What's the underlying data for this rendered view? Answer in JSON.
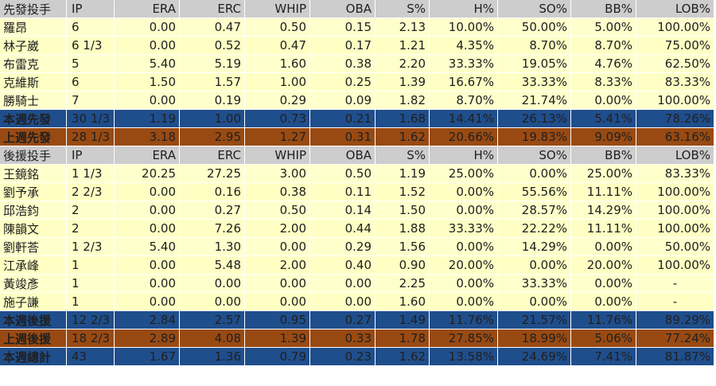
{
  "columns": [
    "IP",
    "ERA",
    "ERC",
    "WHIP",
    "OBA",
    "S%",
    "H%",
    "SO%",
    "BB%",
    "LOB%"
  ],
  "sections": [
    {
      "header": "先發投手",
      "rows": [
        {
          "name": "羅昂",
          "IP": "6",
          "ERA": "0.00",
          "ERC": "0.47",
          "WHIP": "0.50",
          "OBA": "0.15",
          "S%": "2.13",
          "H%": "10.00%",
          "SO%": "50.00%",
          "BB%": "5.00%",
          "LOB%": "100.00%"
        },
        {
          "name": "林子崴",
          "IP": "6 1/3",
          "ERA": "0.00",
          "ERC": "0.52",
          "WHIP": "0.47",
          "OBA": "0.17",
          "S%": "1.21",
          "H%": "4.35%",
          "SO%": "8.70%",
          "BB%": "8.70%",
          "LOB%": "75.00%"
        },
        {
          "name": "布雷克",
          "IP": "5",
          "ERA": "5.40",
          "ERC": "5.19",
          "WHIP": "1.60",
          "OBA": "0.38",
          "S%": "2.20",
          "H%": "33.33%",
          "SO%": "19.05%",
          "BB%": "4.76%",
          "LOB%": "62.50%"
        },
        {
          "name": "克維斯",
          "IP": "6",
          "ERA": "1.50",
          "ERC": "1.57",
          "WHIP": "1.00",
          "OBA": "0.25",
          "S%": "1.39",
          "H%": "16.67%",
          "SO%": "33.33%",
          "BB%": "8.33%",
          "LOB%": "83.33%"
        },
        {
          "name": "勝騎士",
          "IP": "7",
          "ERA": "0.00",
          "ERC": "0.19",
          "WHIP": "0.29",
          "OBA": "0.09",
          "S%": "1.82",
          "H%": "8.70%",
          "SO%": "21.74%",
          "BB%": "0.00%",
          "LOB%": "100.00%"
        }
      ],
      "summaries": [
        {
          "style": "blue",
          "name": "本週先發",
          "IP": "30 1/3",
          "ERA": "1.19",
          "ERC": "1.00",
          "WHIP": "0.73",
          "OBA": "0.21",
          "S%": "1.68",
          "H%": "14.41%",
          "SO%": "26.13%",
          "BB%": "5.41%",
          "LOB%": "78.26%"
        },
        {
          "style": "brown",
          "name": "上週先發",
          "IP": "28 1/3",
          "ERA": "3.18",
          "ERC": "2.95",
          "WHIP": "1.27",
          "OBA": "0.31",
          "S%": "1.62",
          "H%": "20.66%",
          "SO%": "19.83%",
          "BB%": "9.09%",
          "LOB%": "63.16%"
        }
      ]
    },
    {
      "header": "後援投手",
      "rows": [
        {
          "name": "王鏡銘",
          "IP": "1 1/3",
          "ERA": "20.25",
          "ERC": "27.25",
          "WHIP": "3.00",
          "OBA": "0.50",
          "S%": "1.19",
          "H%": "25.00%",
          "SO%": "0.00%",
          "BB%": "25.00%",
          "LOB%": "83.33%"
        },
        {
          "name": "劉予承",
          "IP": "2 2/3",
          "ERA": "0.00",
          "ERC": "0.16",
          "WHIP": "0.38",
          "OBA": "0.11",
          "S%": "1.52",
          "H%": "0.00%",
          "SO%": "55.56%",
          "BB%": "11.11%",
          "LOB%": "100.00%"
        },
        {
          "name": "邱浩鈞",
          "IP": "2",
          "ERA": "0.00",
          "ERC": "0.27",
          "WHIP": "0.50",
          "OBA": "0.14",
          "S%": "1.50",
          "H%": "0.00%",
          "SO%": "28.57%",
          "BB%": "14.29%",
          "LOB%": "100.00%"
        },
        {
          "name": "陳韻文",
          "IP": "2",
          "ERA": "0.00",
          "ERC": "7.26",
          "WHIP": "2.00",
          "OBA": "0.44",
          "S%": "1.88",
          "H%": "33.33%",
          "SO%": "22.22%",
          "BB%": "11.11%",
          "LOB%": "100.00%"
        },
        {
          "name": "劉軒荅",
          "IP": "1 2/3",
          "ERA": "5.40",
          "ERC": "1.30",
          "WHIP": "0.00",
          "OBA": "0.29",
          "S%": "1.56",
          "H%": "0.00%",
          "SO%": "14.29%",
          "BB%": "0.00%",
          "LOB%": "50.00%"
        },
        {
          "name": "江承峰",
          "IP": "1",
          "ERA": "0.00",
          "ERC": "5.48",
          "WHIP": "2.00",
          "OBA": "0.40",
          "S%": "0.90",
          "H%": "20.00%",
          "SO%": "0.00%",
          "BB%": "20.00%",
          "LOB%": "100.00%"
        },
        {
          "name": "黃竣彥",
          "IP": "1",
          "ERA": "0.00",
          "ERC": "0.00",
          "WHIP": "0.00",
          "OBA": "0.00",
          "S%": "2.25",
          "H%": "0.00%",
          "SO%": "33.33%",
          "BB%": "0.00%",
          "LOB%": "-"
        },
        {
          "name": "施子謙",
          "IP": "1",
          "ERA": "0.00",
          "ERC": "0.00",
          "WHIP": "0.00",
          "OBA": "0.00",
          "S%": "1.60",
          "H%": "0.00%",
          "SO%": "0.00%",
          "BB%": "0.00%",
          "LOB%": "-"
        }
      ],
      "summaries": [
        {
          "style": "blue",
          "name": "本週後援",
          "IP": "12 2/3",
          "ERA": "2.84",
          "ERC": "2.57",
          "WHIP": "0.95",
          "OBA": "0.27",
          "S%": "1.49",
          "H%": "11.76%",
          "SO%": "21.57%",
          "BB%": "11.76%",
          "LOB%": "89.29%"
        },
        {
          "style": "brown",
          "name": "上週後援",
          "IP": "18 2/3",
          "ERA": "2.89",
          "ERC": "4.08",
          "WHIP": "1.39",
          "OBA": "0.33",
          "S%": "1.78",
          "H%": "27.85%",
          "SO%": "18.99%",
          "BB%": "5.06%",
          "LOB%": "77.24%"
        },
        {
          "style": "blue",
          "name": "本週總計",
          "IP": "43",
          "ERA": "1.67",
          "ERC": "1.36",
          "WHIP": "0.79",
          "OBA": "0.23",
          "S%": "1.62",
          "H%": "13.58%",
          "SO%": "24.69%",
          "BB%": "7.41%",
          "LOB%": "81.87%"
        }
      ]
    }
  ],
  "colors": {
    "header_bg": "#cdcdcd",
    "row_bg": "#ffffcc",
    "summary_blue": "#1f4e8c",
    "summary_brown": "#994a12",
    "summary_text": "#ffffff"
  }
}
